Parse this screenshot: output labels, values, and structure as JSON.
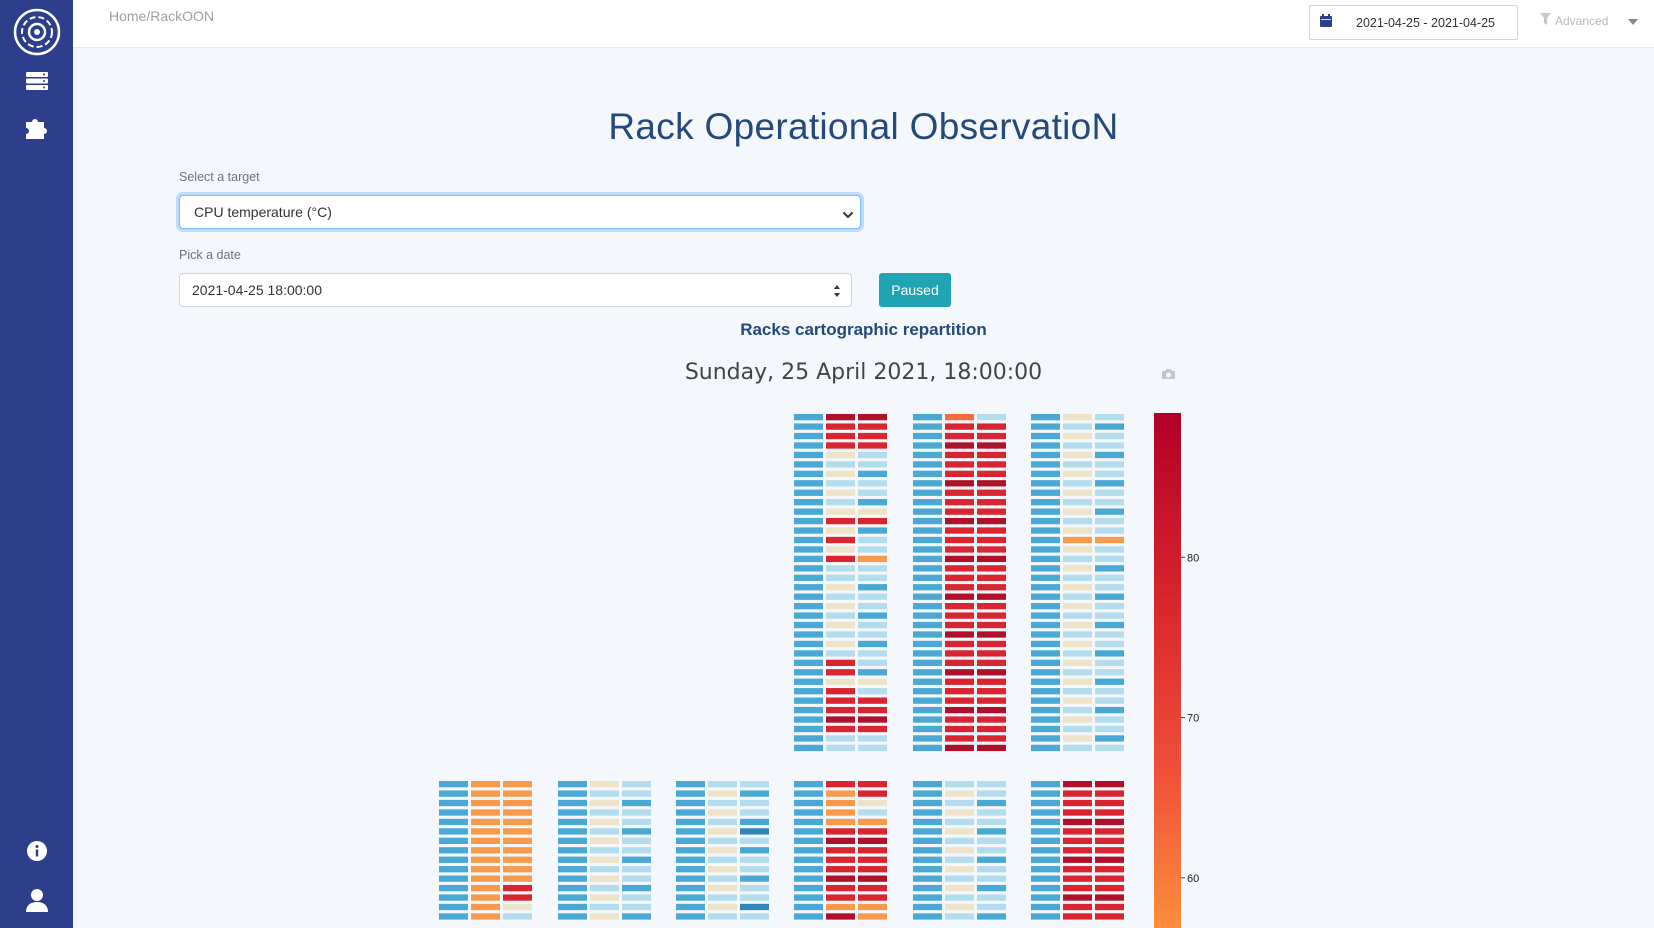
{
  "sidebar": {
    "icons": [
      "logo-icon",
      "server-icon",
      "puzzle-icon",
      "info-icon",
      "user-icon"
    ]
  },
  "breadcrumb": [
    "Home",
    "/",
    "RackOON"
  ],
  "header": {
    "date_range": "2021-04-25 - 2021-04-25",
    "advanced_label": "Advanced"
  },
  "page": {
    "title": "Rack Operational ObservatioN"
  },
  "form": {
    "target_label": "Select a target",
    "target_value": "CPU temperature (°C)",
    "date_label": "Pick a date",
    "date_value": "2021-04-25 18:00:00",
    "paused_label": "Paused"
  },
  "chart_data": {
    "type": "heatmap",
    "title": "Racks cartographic repartition",
    "subtitle": "Sunday, 25 April 2021, 18:00:00",
    "colorbar": {
      "ticks": [
        80,
        70,
        60
      ],
      "range": [
        55,
        89
      ]
    },
    "racks": [
      {
        "row": "top",
        "slots": 36,
        "columns": [
          "LLLLLLLLLLLLLLLLLLLLLLLLLLLLLLLLLLLL",
          "RRRRSSSSSSSRSRSRLLSSSSSSSLRRSRRRRRLL",
          "RRRRLLLLLLSRLLLOLLLLLLLLLLLLSLRRRRLL"
        ]
      },
      {
        "row": "top",
        "slots": 36,
        "columns": [
          "LLLLLLLLLLLLLLLLLLLLLLLLLLLLLLLLLLLL",
          "PRRRRRRRRRRRRRRRRRRRRRRRRRRRRRRRRRRR",
          "LRRRRRRRRRRRRRRRRRRRRRRRRRRRRRRRRRRR"
        ]
      },
      {
        "row": "top",
        "slots": 36,
        "columns": [
          "LLLLLLLLLLLLLLLLLLLLLLLLLLLLLLLLLLLL",
          "SSSSSSSSSSSSSOSSSSSSSSSSSSSSSSSSSSSS",
          "LLLLLLLLLLLLLOLLLLLLLLLLLLLLLLLLLLLL"
        ]
      },
      {
        "row": "bottom",
        "slots": 17,
        "columns": [
          "LLLLLLLLLLLLLLLLL",
          "OOOOOOOOOOOOOOOOS",
          "OOOOOOOOOOORRSSSS"
        ]
      },
      {
        "row": "bottom",
        "slots": 17,
        "columns": [
          "LLLLLLLLLLLLLLLLL",
          "SSSSSSSSSSSSSSSSS",
          "LLLLLLLLLLLLLLLLL"
        ]
      },
      {
        "row": "bottom",
        "slots": 17,
        "columns": [
          "LLLLLLLLLLLLLLLLL",
          "SSSSSSSSSSSSSSSSS",
          "LLLLLDLLLLLLLDLLL"
        ]
      },
      {
        "row": "bottom",
        "slots": 17,
        "columns": [
          "LLLLLLLLLLLLLLLLL",
          "ROOOORRRRRRRRORRR",
          "RRSSORRRRRRRROORR"
        ]
      },
      {
        "row": "bottom",
        "slots": 17,
        "columns": [
          "LLLLLLLLLLLLLLLLL",
          "SSSSSSSSSSSSSSSSS",
          "LLLLLLLLLLLLLLLLL"
        ]
      },
      {
        "row": "bottom",
        "slots": 17,
        "columns": [
          "LLLLLLLLLLLLLLLLL",
          "RRRRRRRRRRRRRRRRR",
          "RRRRRRRRRRRRRRRRR"
        ]
      }
    ],
    "legend_codes": {
      "L": "cool",
      "D": "cool-dark",
      "S": "neutral",
      "P": "mid",
      "O": "warm",
      "R": "hot"
    },
    "colors": {
      "cool": "#4aa8d4",
      "cool_light": "#b3dded",
      "neutral": "#ece3c8",
      "warm": "#f89a4b",
      "hot": "#d8252f",
      "hot_dark": "#b0112a"
    }
  }
}
